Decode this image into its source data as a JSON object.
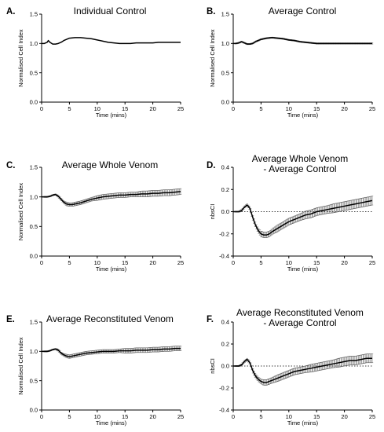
{
  "figure": {
    "panels": [
      {
        "letter": "A.",
        "title": [
          "Individual Control"
        ]
      },
      {
        "letter": "B.",
        "title": [
          "Average Control"
        ]
      },
      {
        "letter": "C.",
        "title": [
          "Average Whole Venom"
        ]
      },
      {
        "letter": "D.",
        "title": [
          "Average Whole Venom",
          "- Average Control"
        ]
      },
      {
        "letter": "E.",
        "title": [
          "Average Reconstituted Venom"
        ]
      },
      {
        "letter": "F.",
        "title": [
          "Average Reconstituted Venom",
          "- Average Control"
        ]
      }
    ]
  },
  "chart_data": [
    {
      "id": "A",
      "type": "line",
      "title": "Individual Control",
      "xlabel": "Time (mins)",
      "ylabel": "Normalised Cell Index",
      "xlim": [
        0,
        25
      ],
      "ylim": [
        0,
        1.5
      ],
      "xticks": [
        0,
        5,
        10,
        15,
        20,
        25
      ],
      "yticks": [
        0.0,
        0.5,
        1.0,
        1.5
      ],
      "error_bars": false,
      "zero_line": false,
      "series": [
        {
          "x": [
            0,
            0.5,
            1,
            1.2,
            1.5,
            2,
            2.5,
            3,
            3.5,
            4,
            5,
            6,
            7,
            8,
            9,
            10,
            11,
            12,
            13,
            14,
            15,
            16,
            17,
            18,
            19,
            20,
            21,
            22,
            23,
            24,
            25
          ],
          "y": [
            1.0,
            1.0,
            1.02,
            1.05,
            1.02,
            0.99,
            0.99,
            1.0,
            1.02,
            1.05,
            1.09,
            1.1,
            1.1,
            1.09,
            1.08,
            1.06,
            1.04,
            1.02,
            1.01,
            1.0,
            1.0,
            1.0,
            1.01,
            1.01,
            1.01,
            1.01,
            1.02,
            1.02,
            1.02,
            1.02,
            1.02
          ],
          "err": []
        }
      ]
    },
    {
      "id": "B",
      "type": "line",
      "title": "Average Control",
      "xlabel": "Time (mins)",
      "ylabel": "Normalised Cell Index",
      "xlim": [
        0,
        25
      ],
      "ylim": [
        0,
        1.5
      ],
      "xticks": [
        0,
        5,
        10,
        15,
        20,
        25
      ],
      "yticks": [
        0.0,
        0.5,
        1.0,
        1.5
      ],
      "error_bars": true,
      "zero_line": false,
      "series": [
        {
          "x": [
            0,
            0.5,
            1,
            1.5,
            2,
            2.5,
            3,
            3.5,
            4,
            5,
            6,
            7,
            8,
            9,
            10,
            11,
            12,
            13,
            14,
            15,
            16,
            17,
            18,
            19,
            20,
            21,
            22,
            23,
            24,
            25
          ],
          "y": [
            1.0,
            1.0,
            1.01,
            1.03,
            1.01,
            0.99,
            0.99,
            1.0,
            1.03,
            1.07,
            1.09,
            1.1,
            1.09,
            1.08,
            1.06,
            1.05,
            1.03,
            1.02,
            1.01,
            1.0,
            1.0,
            1.0,
            1.0,
            1.0,
            1.0,
            1.0,
            1.0,
            1.0,
            1.0,
            1.0
          ],
          "err": [
            0,
            0.01,
            0.01,
            0.01,
            0.01,
            0.01,
            0.01,
            0.01,
            0.01,
            0.01,
            0.01,
            0.01,
            0.01,
            0.01,
            0.01,
            0.01,
            0.01,
            0.01,
            0.01,
            0.01,
            0.01,
            0.01,
            0.01,
            0.01,
            0.01,
            0.01,
            0.01,
            0.01,
            0.01,
            0.01
          ]
        }
      ]
    },
    {
      "id": "C",
      "type": "line",
      "title": "Average Whole Venom",
      "xlabel": "Time (mins)",
      "ylabel": "Normalised Cell Index",
      "xlim": [
        0,
        25
      ],
      "ylim": [
        0,
        1.5
      ],
      "xticks": [
        0,
        5,
        10,
        15,
        20,
        25
      ],
      "yticks": [
        0.0,
        0.5,
        1.0,
        1.5
      ],
      "error_bars": true,
      "zero_line": false,
      "series": [
        {
          "x": [
            0,
            0.5,
            1,
            1.5,
            2,
            2.5,
            3,
            3.5,
            4,
            4.5,
            5,
            5.5,
            6,
            7,
            8,
            9,
            10,
            11,
            12,
            13,
            14,
            15,
            16,
            17,
            18,
            19,
            20,
            21,
            22,
            23,
            24,
            25
          ],
          "y": [
            1.0,
            1.0,
            1.0,
            1.01,
            1.03,
            1.04,
            1.01,
            0.96,
            0.91,
            0.88,
            0.87,
            0.87,
            0.88,
            0.9,
            0.93,
            0.96,
            0.98,
            1.0,
            1.01,
            1.02,
            1.03,
            1.03,
            1.04,
            1.04,
            1.05,
            1.05,
            1.06,
            1.06,
            1.07,
            1.07,
            1.08,
            1.09
          ],
          "err": [
            0,
            0.01,
            0.01,
            0.01,
            0.01,
            0.01,
            0.02,
            0.02,
            0.02,
            0.03,
            0.03,
            0.03,
            0.03,
            0.03,
            0.03,
            0.03,
            0.04,
            0.04,
            0.04,
            0.04,
            0.04,
            0.04,
            0.04,
            0.04,
            0.05,
            0.05,
            0.05,
            0.05,
            0.05,
            0.05,
            0.05,
            0.05
          ]
        }
      ]
    },
    {
      "id": "D",
      "type": "line",
      "title": "Average Whole Venom - Average Control",
      "xlabel": "Time (mins)",
      "ylabel": "nbsCI",
      "xlim": [
        0,
        25
      ],
      "ylim": [
        -0.4,
        0.4
      ],
      "xticks": [
        0,
        5,
        10,
        15,
        20,
        25
      ],
      "yticks": [
        -0.4,
        -0.2,
        0.0,
        0.2,
        0.4
      ],
      "error_bars": true,
      "zero_line": true,
      "series": [
        {
          "x": [
            0,
            0.5,
            1,
            1.5,
            2,
            2.5,
            3,
            3.5,
            4,
            4.5,
            5,
            5.5,
            6,
            6.5,
            7,
            8,
            9,
            10,
            11,
            12,
            13,
            14,
            15,
            16,
            17,
            18,
            19,
            20,
            21,
            22,
            23,
            24,
            25
          ],
          "y": [
            0.0,
            0.0,
            0.0,
            0.01,
            0.04,
            0.06,
            0.03,
            -0.05,
            -0.12,
            -0.17,
            -0.2,
            -0.21,
            -0.21,
            -0.2,
            -0.18,
            -0.15,
            -0.12,
            -0.09,
            -0.07,
            -0.05,
            -0.03,
            -0.02,
            0.0,
            0.01,
            0.02,
            0.03,
            0.04,
            0.05,
            0.06,
            0.07,
            0.08,
            0.09,
            0.1
          ],
          "err": [
            0,
            0.005,
            0.005,
            0.01,
            0.01,
            0.01,
            0.015,
            0.02,
            0.02,
            0.02,
            0.025,
            0.025,
            0.025,
            0.025,
            0.025,
            0.03,
            0.03,
            0.03,
            0.03,
            0.03,
            0.035,
            0.035,
            0.035,
            0.035,
            0.035,
            0.04,
            0.04,
            0.04,
            0.04,
            0.04,
            0.04,
            0.04,
            0.04
          ]
        }
      ]
    },
    {
      "id": "E",
      "type": "line",
      "title": "Average Reconstituted Venom",
      "xlabel": "Time (mins)",
      "ylabel": "Normalised Cell Index",
      "xlim": [
        0,
        25
      ],
      "ylim": [
        0,
        1.5
      ],
      "xticks": [
        0,
        5,
        10,
        15,
        20,
        25
      ],
      "yticks": [
        0.0,
        0.5,
        1.0,
        1.5
      ],
      "error_bars": true,
      "zero_line": false,
      "series": [
        {
          "x": [
            0,
            0.5,
            1,
            1.5,
            2,
            2.5,
            3,
            3.5,
            4,
            4.5,
            5,
            5.5,
            6,
            7,
            8,
            9,
            10,
            11,
            12,
            13,
            14,
            15,
            16,
            17,
            18,
            19,
            20,
            21,
            22,
            23,
            24,
            25
          ],
          "y": [
            1.0,
            1.0,
            1.0,
            1.01,
            1.03,
            1.04,
            1.02,
            0.97,
            0.94,
            0.92,
            0.91,
            0.92,
            0.93,
            0.95,
            0.97,
            0.98,
            0.99,
            1.0,
            1.0,
            1.0,
            1.01,
            1.01,
            1.01,
            1.02,
            1.02,
            1.02,
            1.03,
            1.03,
            1.04,
            1.04,
            1.05,
            1.05
          ],
          "err": [
            0,
            0.01,
            0.01,
            0.01,
            0.01,
            0.01,
            0.02,
            0.02,
            0.02,
            0.03,
            0.03,
            0.03,
            0.03,
            0.03,
            0.03,
            0.03,
            0.03,
            0.03,
            0.03,
            0.03,
            0.03,
            0.04,
            0.04,
            0.04,
            0.04,
            0.04,
            0.04,
            0.04,
            0.04,
            0.04,
            0.04,
            0.04
          ]
        }
      ]
    },
    {
      "id": "F",
      "type": "line",
      "title": "Average Reconstituted Venom - Average Control",
      "xlabel": "Time (mins)",
      "ylabel": "nbsCI",
      "xlim": [
        0,
        25
      ],
      "ylim": [
        -0.4,
        0.4
      ],
      "xticks": [
        0,
        5,
        10,
        15,
        20,
        25
      ],
      "yticks": [
        -0.4,
        -0.2,
        0.0,
        0.2,
        0.4
      ],
      "error_bars": true,
      "zero_line": true,
      "series": [
        {
          "x": [
            0,
            0.5,
            1,
            1.5,
            2,
            2.5,
            3,
            3.5,
            4,
            4.5,
            5,
            5.5,
            6,
            6.5,
            7,
            8,
            9,
            10,
            11,
            12,
            13,
            14,
            15,
            16,
            17,
            18,
            19,
            20,
            21,
            22,
            23,
            24,
            25
          ],
          "y": [
            0.0,
            0.0,
            0.0,
            0.01,
            0.04,
            0.06,
            0.03,
            -0.04,
            -0.09,
            -0.12,
            -0.14,
            -0.15,
            -0.15,
            -0.14,
            -0.13,
            -0.11,
            -0.09,
            -0.07,
            -0.05,
            -0.04,
            -0.03,
            -0.02,
            -0.01,
            0.0,
            0.01,
            0.02,
            0.03,
            0.04,
            0.05,
            0.05,
            0.06,
            0.07,
            0.07
          ],
          "err": [
            0,
            0.005,
            0.005,
            0.01,
            0.01,
            0.01,
            0.015,
            0.02,
            0.02,
            0.02,
            0.02,
            0.025,
            0.025,
            0.025,
            0.025,
            0.03,
            0.03,
            0.03,
            0.03,
            0.03,
            0.03,
            0.035,
            0.035,
            0.035,
            0.035,
            0.035,
            0.04,
            0.04,
            0.04,
            0.04,
            0.04,
            0.04,
            0.04
          ]
        }
      ]
    }
  ]
}
